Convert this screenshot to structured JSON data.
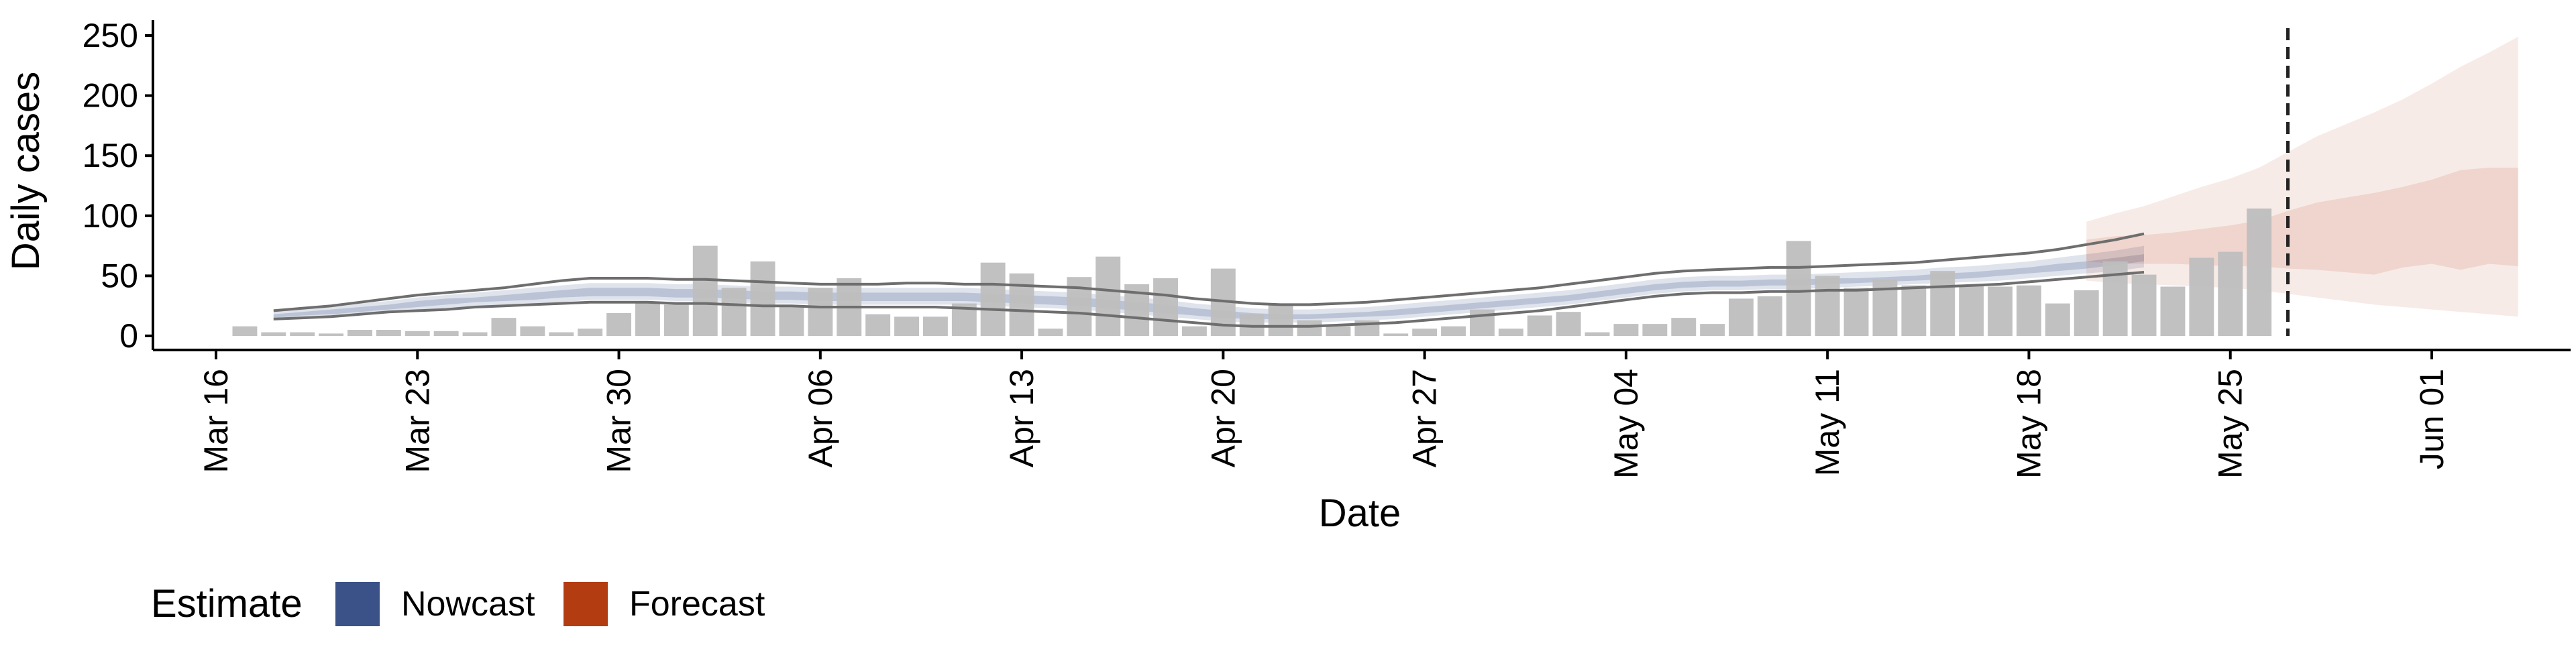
{
  "chart_data": {
    "type": "bar",
    "title": "",
    "xlabel": "Date",
    "ylabel": "Daily cases",
    "ylim": [
      0,
      260
    ],
    "y_ticks": [
      0,
      50,
      100,
      150,
      200,
      250
    ],
    "x_ticks": [
      "Mar 16",
      "Mar 23",
      "Mar 30",
      "Apr 06",
      "Apr 13",
      "Apr 20",
      "Apr 27",
      "May 04",
      "May 11",
      "May 18",
      "May 25",
      "Jun 01"
    ],
    "x_tick_dates": [
      "2020-03-16",
      "2020-03-23",
      "2020-03-30",
      "2020-04-06",
      "2020-04-13",
      "2020-04-20",
      "2020-04-27",
      "2020-05-04",
      "2020-05-11",
      "2020-05-18",
      "2020-05-25",
      "2020-06-01"
    ],
    "x_range": [
      "2020-03-16",
      "2020-06-04"
    ],
    "grid": false,
    "legend_position": "bottom-left",
    "legend": {
      "title": "Estimate",
      "items": [
        {
          "label": "Nowcast",
          "color": "#3a5287"
        },
        {
          "label": "Forecast",
          "color": "#b33c10"
        }
      ]
    },
    "colors": {
      "bars": "#bebebe",
      "nowcast": "#3a5287",
      "forecast": "#b33c10",
      "outline": "#6e6e6e",
      "cutoff_line": "#222222"
    },
    "cutoff_date": "2020-05-27",
    "reported_cases": {
      "start_date": "2020-03-17",
      "values": [
        8,
        3,
        3,
        2,
        5,
        5,
        4,
        4,
        3,
        15,
        8,
        3,
        6,
        19,
        28,
        26,
        75,
        40,
        62,
        25,
        40,
        48,
        18,
        16,
        16,
        27,
        61,
        52,
        6,
        49,
        66,
        43,
        48,
        8,
        56,
        18,
        26,
        13,
        8,
        13,
        2,
        6,
        8,
        22,
        6,
        17,
        20,
        3,
        10,
        10,
        15,
        10,
        31,
        33,
        79,
        50,
        40,
        47,
        42,
        54,
        42,
        41,
        42,
        27,
        38,
        62,
        51,
        41,
        65,
        70,
        106
      ]
    },
    "outline_band": {
      "start_date": "2020-03-18",
      "upper": [
        21,
        23,
        25,
        28,
        31,
        34,
        36,
        38,
        40,
        43,
        46,
        48,
        48,
        48,
        47,
        47,
        46,
        45,
        44,
        43,
        43,
        43,
        44,
        44,
        43,
        43,
        42,
        41,
        40,
        38,
        36,
        34,
        31,
        29,
        27,
        26,
        26,
        27,
        28,
        30,
        32,
        34,
        36,
        38,
        40,
        43,
        46,
        49,
        52,
        54,
        55,
        56,
        57,
        57,
        58,
        59,
        60,
        61,
        63,
        65,
        67,
        69,
        72,
        76,
        80,
        85
      ],
      "lower": [
        14,
        15,
        16,
        18,
        20,
        21,
        22,
        24,
        25,
        26,
        27,
        28,
        28,
        28,
        27,
        27,
        26,
        25,
        25,
        24,
        24,
        24,
        24,
        24,
        23,
        22,
        21,
        20,
        19,
        17,
        15,
        13,
        11,
        9,
        8,
        8,
        8,
        9,
        10,
        11,
        13,
        15,
        17,
        19,
        21,
        24,
        27,
        30,
        33,
        35,
        36,
        36,
        37,
        37,
        38,
        38,
        39,
        40,
        41,
        42,
        43,
        45,
        47,
        49,
        51,
        53
      ]
    },
    "nowcast_band": {
      "start_date": "2020-03-18",
      "outer_upper": [
        20,
        22,
        24,
        27,
        29,
        32,
        34,
        36,
        38,
        40,
        42,
        44,
        44,
        44,
        43,
        43,
        42,
        41,
        41,
        40,
        40,
        40,
        40,
        40,
        40,
        39,
        38,
        37,
        36,
        34,
        32,
        30,
        27,
        25,
        23,
        22,
        22,
        23,
        24,
        26,
        28,
        30,
        32,
        34,
        36,
        38,
        41,
        44,
        47,
        49,
        50,
        50,
        51,
        51,
        52,
        53,
        54,
        55,
        57,
        58,
        60,
        62,
        65,
        68,
        71,
        75
      ],
      "outer_lower": [
        13,
        15,
        16,
        18,
        20,
        22,
        23,
        25,
        26,
        27,
        28,
        30,
        30,
        30,
        29,
        29,
        28,
        27,
        27,
        26,
        26,
        26,
        26,
        26,
        26,
        25,
        24,
        23,
        22,
        20,
        18,
        16,
        14,
        12,
        11,
        11,
        11,
        12,
        13,
        14,
        16,
        18,
        20,
        22,
        24,
        26,
        29,
        32,
        35,
        37,
        38,
        38,
        39,
        39,
        40,
        41,
        42,
        43,
        44,
        45,
        46,
        48,
        50,
        52,
        54,
        57
      ],
      "inner_upper": [
        18,
        20,
        22,
        24,
        26,
        29,
        31,
        32,
        34,
        36,
        38,
        40,
        40,
        40,
        39,
        39,
        38,
        37,
        37,
        36,
        36,
        36,
        36,
        36,
        36,
        35,
        34,
        33,
        32,
        30,
        28,
        26,
        23,
        21,
        19,
        18,
        18,
        19,
        20,
        22,
        24,
        26,
        28,
        30,
        32,
        34,
        37,
        40,
        43,
        45,
        46,
        46,
        47,
        47,
        48,
        48,
        49,
        50,
        52,
        53,
        55,
        57,
        60,
        62,
        65,
        68
      ],
      "inner_lower": [
        15,
        17,
        18,
        20,
        22,
        24,
        26,
        28,
        29,
        30,
        32,
        33,
        33,
        33,
        32,
        32,
        31,
        30,
        30,
        29,
        29,
        29,
        29,
        29,
        29,
        28,
        27,
        26,
        25,
        23,
        21,
        19,
        17,
        15,
        14,
        14,
        14,
        15,
        16,
        17,
        19,
        21,
        23,
        25,
        27,
        29,
        32,
        35,
        38,
        40,
        41,
        41,
        42,
        42,
        43,
        44,
        45,
        46,
        47,
        48,
        50,
        52,
        54,
        56,
        59,
        62
      ]
    },
    "forecast_band": {
      "start_date": "2020-05-20",
      "outer_upper": [
        95,
        102,
        108,
        116,
        124,
        131,
        140,
        153,
        166,
        176,
        186,
        197,
        210,
        224,
        236,
        249
      ],
      "outer_lower": [
        46,
        44,
        43,
        42,
        41,
        40,
        38,
        35,
        32,
        29,
        26,
        24,
        22,
        20,
        18,
        16
      ],
      "inner_upper": [
        80,
        83,
        84,
        86,
        89,
        92,
        96,
        104,
        111,
        115,
        119,
        124,
        130,
        138,
        140,
        140
      ],
      "inner_lower": [
        62,
        60,
        60,
        60,
        59,
        58,
        58,
        56,
        55,
        53,
        51,
        57,
        60,
        55,
        60,
        58
      ]
    }
  }
}
